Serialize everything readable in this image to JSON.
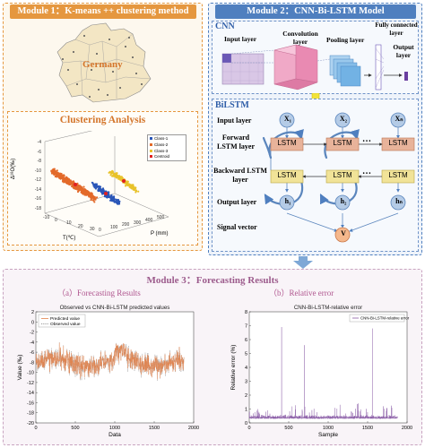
{
  "module1": {
    "title": "Module 1：K-means ++ clustering method",
    "map_label": "Germany",
    "cluster_title": "Clustering Analysis",
    "legend": [
      "Class-1",
      "Class-2",
      "Class-3",
      "Centroid"
    ],
    "axes": {
      "z": "Δ¹⁸O(‰)",
      "x": "T(℃)",
      "y": "P (mm)"
    },
    "z_ticks": [
      "-4",
      "-6",
      "-8",
      "-10",
      "-12",
      "-14",
      "-16",
      "-18"
    ],
    "x_ticks": [
      "-10",
      "0",
      "10",
      "20",
      "30"
    ],
    "y_ticks": [
      "0",
      "100",
      "200",
      "300",
      "400",
      "500"
    ]
  },
  "module2": {
    "title": "Module 2：CNN-Bi-LSTM Model",
    "cnn": {
      "label": "CNN",
      "input": "Input layer",
      "conv": "Convolution layer",
      "pool": "Pooling layer",
      "fc": "Fully connected layer",
      "out": "Output layer"
    },
    "bilstm": {
      "label": "BiLSTM",
      "rows": [
        "Input layer",
        "Forward LSTM layer",
        "Backward LSTM layer",
        "Output layer",
        "Signal vector"
      ],
      "cell": "LSTM",
      "x_nodes": [
        "X₁",
        "X₂",
        "Xₙ"
      ],
      "h_nodes": [
        "h₁",
        "h₂",
        "hₙ"
      ],
      "v_node": "V",
      "dots": "…"
    }
  },
  "module3": {
    "title": "Module 3：Forecasting Results",
    "left_sub": "（a）Forecasting Results",
    "right_sub": "（b）Relative error"
  },
  "colors": {
    "orange": "#e5973f",
    "blue": "#4f7fbf",
    "pink": "#c8a3c0",
    "lstm_pred": "#e3824a",
    "err": "#8a5ba6"
  },
  "chart_data": [
    {
      "type": "line",
      "title": "Observed vs CNN-Bi-LSTM predicted values",
      "xlabel": "Data",
      "ylabel": "Value (‰)",
      "xlim": [
        0,
        2000
      ],
      "ylim": [
        -20,
        2
      ],
      "x_ticks": [
        0,
        500,
        1000,
        1500,
        2000
      ],
      "y_ticks": [
        -20,
        -18,
        -16,
        -14,
        -12,
        -10,
        -8,
        -6,
        -4,
        -2,
        0,
        2
      ],
      "legend_position": "top-left",
      "series": [
        {
          "name": "Predicted value",
          "mean": -8,
          "spread": 3.2,
          "n": 1880
        },
        {
          "name": "Observed value",
          "mean": -8,
          "spread": 3.8,
          "n": 1880
        }
      ]
    },
    {
      "type": "line",
      "title": "CNN-Bi-LSTM-relative error",
      "xlabel": "Sample",
      "ylabel": "Relative error (%)",
      "xlim": [
        0,
        2000
      ],
      "ylim": [
        0,
        8
      ],
      "x_ticks": [
        0,
        500,
        1000,
        1500,
        2000
      ],
      "y_ticks": [
        0,
        1,
        2,
        3,
        4,
        5,
        6,
        7,
        8
      ],
      "legend_position": "top-right",
      "series": [
        {
          "name": "CNN-Bi-LSTM-relative error",
          "baseline": 0.3,
          "n": 1880,
          "peaks": [
            [
              110,
              1.0
            ],
            [
              410,
              6.9
            ],
            [
              700,
              5.6
            ],
            [
              1150,
              1.3
            ],
            [
              1380,
              1.4
            ],
            [
              1560,
              6.8
            ],
            [
              1700,
              1.2
            ]
          ]
        }
      ]
    }
  ]
}
